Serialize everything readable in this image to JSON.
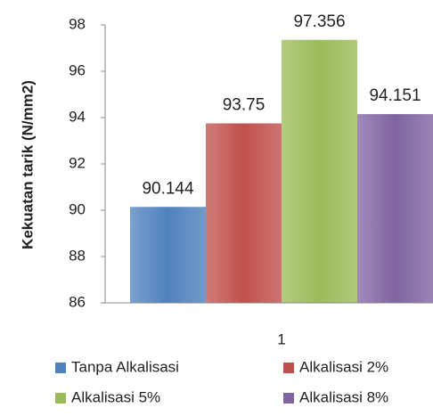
{
  "chart_data": {
    "type": "bar",
    "y_label": "Kekuatan tarik (N/mm2)",
    "categories": [
      "1"
    ],
    "series": [
      {
        "name": "Tanpa Alkalisasi",
        "color": "#4f81bd",
        "values": [
          90.144
        ]
      },
      {
        "name": "Alkalisasi 2%",
        "color": "#c0504d",
        "values": [
          93.75
        ]
      },
      {
        "name": "Alkalisasi 5%",
        "color": "#9bbb59",
        "values": [
          97.356
        ]
      },
      {
        "name": "Alkalisasi 8%",
        "color": "#8064a2",
        "values": [
          94.151
        ]
      }
    ],
    "ylim": [
      86,
      98
    ],
    "yticks": [
      86,
      88,
      90,
      92,
      94,
      96,
      98
    ],
    "grid": false,
    "legend": "bottom"
  }
}
